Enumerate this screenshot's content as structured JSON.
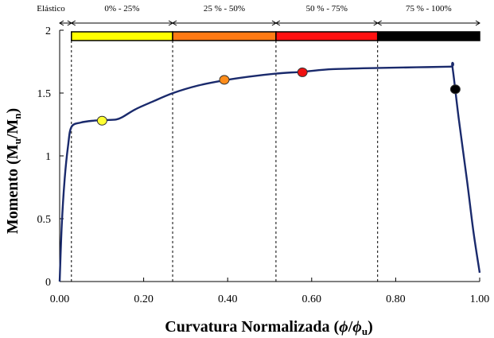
{
  "chart_data": {
    "type": "line",
    "title": "",
    "xlabel": "Curvatura Normalizada (ϕ/ϕu)",
    "xlabel_parts": {
      "main": "Curvatura Normalizada (",
      "sym": "ϕ",
      "slash": "/",
      "sym2": "ϕ",
      "sub": "u",
      "close": ")"
    },
    "ylabel": "Momento (Mu/Mn)",
    "ylabel_parts": {
      "main": "Momento (M",
      "sub1": "u",
      "slash": "/M",
      "sub2": "n",
      "close": ")"
    },
    "xlim": [
      0,
      1
    ],
    "ylim": [
      0,
      2
    ],
    "x_ticks": [
      0,
      0.2,
      0.4,
      0.6,
      0.8,
      1.0
    ],
    "x_tick_labels": [
      "0.00",
      "0.20",
      "0.40",
      "0.60",
      "0.80",
      "1.00"
    ],
    "y_ticks": [
      0,
      0.5,
      1,
      1.5,
      2
    ],
    "y_tick_labels": [
      "0",
      "0.5",
      "1",
      "1.5",
      "2"
    ],
    "grid": false,
    "series": [
      {
        "color": "#1a2a6c",
        "points": [
          [
            0.0,
            0.0
          ],
          [
            0.005,
            0.45
          ],
          [
            0.012,
            0.82
          ],
          [
            0.02,
            1.08
          ],
          [
            0.028,
            1.23
          ],
          [
            0.05,
            1.265
          ],
          [
            0.08,
            1.28
          ],
          [
            0.11,
            1.285
          ],
          [
            0.135,
            1.29
          ],
          [
            0.15,
            1.31
          ],
          [
            0.18,
            1.37
          ],
          [
            0.22,
            1.43
          ],
          [
            0.27,
            1.5
          ],
          [
            0.33,
            1.56
          ],
          [
            0.39,
            1.6
          ],
          [
            0.45,
            1.63
          ],
          [
            0.515,
            1.655
          ],
          [
            0.58,
            1.67
          ],
          [
            0.65,
            1.69
          ],
          [
            0.76,
            1.7
          ],
          [
            0.85,
            1.705
          ],
          [
            0.93,
            1.71
          ],
          [
            0.935,
            1.71
          ],
          [
            0.95,
            1.3
          ],
          [
            0.97,
            0.8
          ],
          [
            0.985,
            0.4
          ],
          [
            1.0,
            0.07
          ]
        ]
      }
    ],
    "dividers_x": [
      0.028,
      0.269,
      0.515,
      0.757
    ],
    "markers": [
      {
        "x": 0.101,
        "y": 1.28,
        "color": "#ffff33"
      },
      {
        "x": 0.392,
        "y": 1.605,
        "color": "#ff8c1a"
      },
      {
        "x": 0.578,
        "y": 1.665,
        "color": "#ee1111"
      },
      {
        "x": 0.942,
        "y": 1.53,
        "color": "#000000"
      }
    ],
    "damage_bars": [
      {
        "x0": 0.028,
        "x1": 0.269,
        "color": "#ffff00"
      },
      {
        "x0": 0.269,
        "x1": 0.515,
        "color": "#ff7a14"
      },
      {
        "x0": 0.515,
        "x1": 0.757,
        "color": "#ff1111"
      },
      {
        "x0": 0.757,
        "x1": 1.0,
        "color": "#000000"
      }
    ],
    "ranges": [
      {
        "label": "Elástico",
        "x0": 0.0,
        "x1": 0.028
      },
      {
        "label": "0% - 25%",
        "x0": 0.028,
        "x1": 0.269
      },
      {
        "label": "25 % - 50%",
        "x0": 0.269,
        "x1": 0.515
      },
      {
        "label": "50 % - 75%",
        "x0": 0.515,
        "x1": 0.757
      },
      {
        "label": "75 % - 100%",
        "x0": 0.757,
        "x1": 1.0
      }
    ]
  }
}
